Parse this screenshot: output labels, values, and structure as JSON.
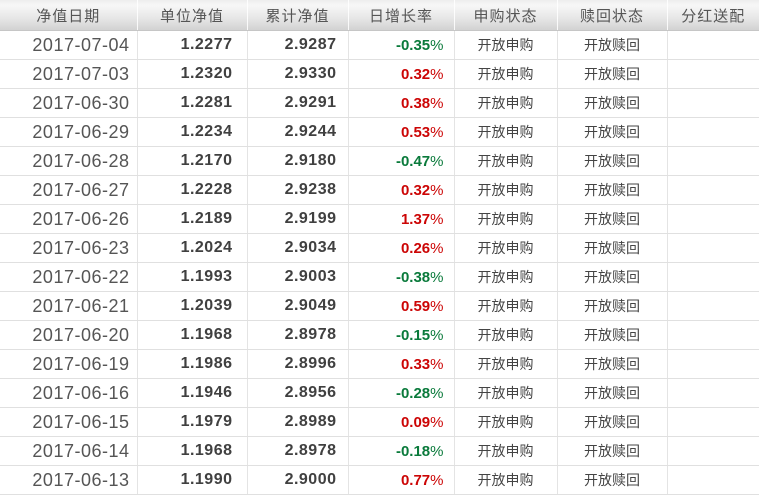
{
  "table": {
    "columns": [
      {
        "key": "date",
        "label": "净值日期"
      },
      {
        "key": "unit_nav",
        "label": "单位净值"
      },
      {
        "key": "cum_nav",
        "label": "累计净值"
      },
      {
        "key": "growth",
        "label": "日增长率"
      },
      {
        "key": "purchase",
        "label": "申购状态"
      },
      {
        "key": "redeem",
        "label": "赎回状态"
      },
      {
        "key": "dividend",
        "label": "分红送配"
      }
    ],
    "percent_sign": "%",
    "rows": [
      {
        "date": "2017-07-04",
        "unit_nav": "1.2277",
        "cum_nav": "2.9287",
        "growth": "-0.35",
        "direction": "down",
        "purchase": "开放申购",
        "redeem": "开放赎回",
        "dividend": ""
      },
      {
        "date": "2017-07-03",
        "unit_nav": "1.2320",
        "cum_nav": "2.9330",
        "growth": "0.32",
        "direction": "up",
        "purchase": "开放申购",
        "redeem": "开放赎回",
        "dividend": ""
      },
      {
        "date": "2017-06-30",
        "unit_nav": "1.2281",
        "cum_nav": "2.9291",
        "growth": "0.38",
        "direction": "up",
        "purchase": "开放申购",
        "redeem": "开放赎回",
        "dividend": ""
      },
      {
        "date": "2017-06-29",
        "unit_nav": "1.2234",
        "cum_nav": "2.9244",
        "growth": "0.53",
        "direction": "up",
        "purchase": "开放申购",
        "redeem": "开放赎回",
        "dividend": ""
      },
      {
        "date": "2017-06-28",
        "unit_nav": "1.2170",
        "cum_nav": "2.9180",
        "growth": "-0.47",
        "direction": "down",
        "purchase": "开放申购",
        "redeem": "开放赎回",
        "dividend": ""
      },
      {
        "date": "2017-06-27",
        "unit_nav": "1.2228",
        "cum_nav": "2.9238",
        "growth": "0.32",
        "direction": "up",
        "purchase": "开放申购",
        "redeem": "开放赎回",
        "dividend": ""
      },
      {
        "date": "2017-06-26",
        "unit_nav": "1.2189",
        "cum_nav": "2.9199",
        "growth": "1.37",
        "direction": "up",
        "purchase": "开放申购",
        "redeem": "开放赎回",
        "dividend": ""
      },
      {
        "date": "2017-06-23",
        "unit_nav": "1.2024",
        "cum_nav": "2.9034",
        "growth": "0.26",
        "direction": "up",
        "purchase": "开放申购",
        "redeem": "开放赎回",
        "dividend": ""
      },
      {
        "date": "2017-06-22",
        "unit_nav": "1.1993",
        "cum_nav": "2.9003",
        "growth": "-0.38",
        "direction": "down",
        "purchase": "开放申购",
        "redeem": "开放赎回",
        "dividend": ""
      },
      {
        "date": "2017-06-21",
        "unit_nav": "1.2039",
        "cum_nav": "2.9049",
        "growth": "0.59",
        "direction": "up",
        "purchase": "开放申购",
        "redeem": "开放赎回",
        "dividend": ""
      },
      {
        "date": "2017-06-20",
        "unit_nav": "1.1968",
        "cum_nav": "2.8978",
        "growth": "-0.15",
        "direction": "down",
        "purchase": "开放申购",
        "redeem": "开放赎回",
        "dividend": ""
      },
      {
        "date": "2017-06-19",
        "unit_nav": "1.1986",
        "cum_nav": "2.8996",
        "growth": "0.33",
        "direction": "up",
        "purchase": "开放申购",
        "redeem": "开放赎回",
        "dividend": ""
      },
      {
        "date": "2017-06-16",
        "unit_nav": "1.1946",
        "cum_nav": "2.8956",
        "growth": "-0.28",
        "direction": "down",
        "purchase": "开放申购",
        "redeem": "开放赎回",
        "dividend": ""
      },
      {
        "date": "2017-06-15",
        "unit_nav": "1.1979",
        "cum_nav": "2.8989",
        "growth": "0.09",
        "direction": "up",
        "purchase": "开放申购",
        "redeem": "开放赎回",
        "dividend": ""
      },
      {
        "date": "2017-06-14",
        "unit_nav": "1.1968",
        "cum_nav": "2.8978",
        "growth": "-0.18",
        "direction": "down",
        "purchase": "开放申购",
        "redeem": "开放赎回",
        "dividend": ""
      },
      {
        "date": "2017-06-13",
        "unit_nav": "1.1990",
        "cum_nav": "2.9000",
        "growth": "0.77",
        "direction": "up",
        "purchase": "开放申购",
        "redeem": "开放赎回",
        "dividend": ""
      }
    ]
  },
  "colors": {
    "up": "#cc0505",
    "down": "#0a7a3b"
  }
}
